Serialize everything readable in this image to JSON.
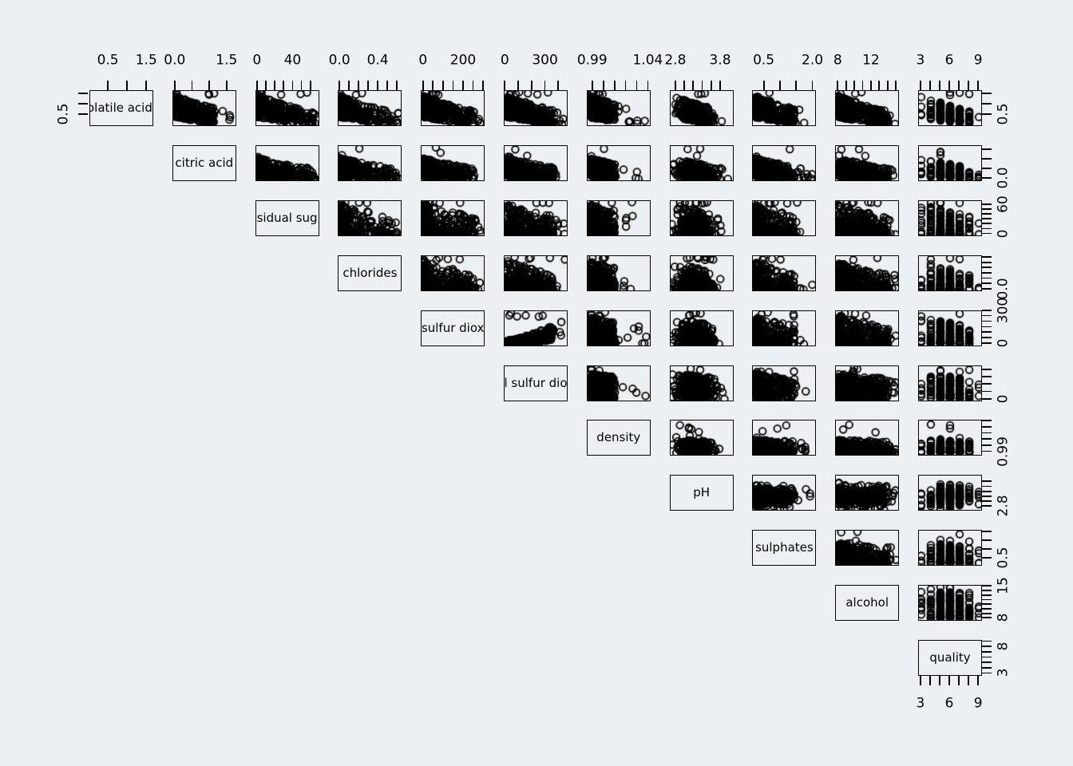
{
  "figure": {
    "background": "#edf0f2",
    "line_color": "#000000",
    "marker": "open-circle",
    "kind": "R pairs scatterplot matrix, upper triangle"
  },
  "chart_data": {
    "type": "scatter",
    "subtype": "scatterplot-matrix-upper-triangle",
    "points_per_cell": 320,
    "marker": {
      "shape": "open-circle",
      "radius": 4.3,
      "stroke_width": 1.8,
      "color": "#000000"
    },
    "pair_overrides": [
      {
        "row": 4,
        "col": 5,
        "wedge": -0.6
      }
    ],
    "variables": [
      {
        "id": "volatile-acidity",
        "label": "olatile acidi",
        "lim": [
          0.02,
          1.64
        ],
        "ticks": [
          0.5,
          1.0,
          1.5
        ],
        "top_labels": [
          {
            "v": 0.5,
            "text": "0.5"
          },
          {
            "v": 1.5,
            "text": "1.5"
          }
        ],
        "right_labels": [
          {
            "v": 0.5,
            "text": "0.5"
          }
        ],
        "left_labels": [
          {
            "v": 0.5,
            "text": "0.5"
          }
        ],
        "dist": {
          "type": "pow",
          "p": 1.7,
          "scale": 0.85,
          "base": 0.03
        },
        "wedge": 0.45
      },
      {
        "id": "citric-acid",
        "label": "citric acid",
        "lim": [
          -0.07,
          1.73
        ],
        "ticks": [
          0.0,
          0.5,
          1.0,
          1.5
        ],
        "top_labels": [
          {
            "v": 0.0,
            "text": "0.0"
          },
          {
            "v": 1.5,
            "text": "1.5"
          }
        ],
        "right_labels": [
          {
            "v": 0.0,
            "text": "0.0"
          }
        ],
        "dist": {
          "type": "pow",
          "p": 1.9,
          "scale": 0.62,
          "base": 0.04
        },
        "wedge": 0.35
      },
      {
        "id": "residual-sugar",
        "label": "sidual sug",
        "lim": [
          -2,
          68
        ],
        "ticks": [
          0,
          10,
          20,
          30,
          40,
          50,
          60
        ],
        "top_labels": [
          {
            "v": 0,
            "text": "0"
          },
          {
            "v": 40,
            "text": "40"
          }
        ],
        "right_labels": [
          {
            "v": 60,
            "text": "60"
          },
          {
            "v": 0,
            "text": "0"
          }
        ],
        "dist": {
          "type": "pow",
          "p": 3.0,
          "scale": 0.9,
          "base": 0.03
        },
        "wedge": 0.2
      },
      {
        "id": "chlorides",
        "label": "chlorides",
        "lim": [
          -0.015,
          0.635
        ],
        "ticks": [
          0.0,
          0.1,
          0.2,
          0.3,
          0.4,
          0.5,
          0.6
        ],
        "top_labels": [
          {
            "v": 0.0,
            "text": "0.0"
          },
          {
            "v": 0.4,
            "text": "0.4"
          }
        ],
        "right_labels": [
          {
            "v": 0.0,
            "text": "0.0"
          }
        ],
        "dist": {
          "type": "pow",
          "p": 3.4,
          "scale": 0.85,
          "base": 0.03
        },
        "wedge": 0.2
      },
      {
        "id": "free-sulfur-dioxide",
        "label": "sulfur diox",
        "lim": [
          -10.5,
          300.5
        ],
        "ticks": [
          0,
          50,
          100,
          150,
          200,
          250,
          300
        ],
        "top_labels": [
          {
            "v": 0,
            "text": "0"
          },
          {
            "v": 200,
            "text": "200"
          }
        ],
        "right_labels": [
          {
            "v": 300,
            "text": "300"
          },
          {
            "v": 0,
            "text": "0"
          }
        ],
        "dist": {
          "type": "pow",
          "p": 2.4,
          "scale": 0.8,
          "base": 0.04
        },
        "wedge": 0.2
      },
      {
        "id": "total-sulfur-dioxide",
        "label": "l sulfur dio",
        "lim": [
          -8,
          458
        ],
        "ticks": [
          0,
          100,
          200,
          300,
          400
        ],
        "top_labels": [
          {
            "v": 0,
            "text": "0"
          },
          {
            "v": 300,
            "text": "300"
          }
        ],
        "right_labels": [
          {
            "v": 0,
            "text": "0"
          }
        ],
        "dist": {
          "type": "pow",
          "p": 1.6,
          "scale": 0.75,
          "base": 0.04
        },
        "wedge": 0.15
      },
      {
        "id": "density",
        "label": "density",
        "lim": [
          0.985,
          1.041
        ],
        "ticks": [
          0.99,
          1.0,
          1.01,
          1.02,
          1.03,
          1.04
        ],
        "top_labels": [
          {
            "v": 0.99,
            "text": "0.99"
          },
          {
            "v": 1.04,
            "text": "1.04"
          }
        ],
        "right_labels": [
          {
            "v": 0.99,
            "text": "0.99"
          }
        ],
        "dist": {
          "type": "pow",
          "p": 2.0,
          "scale": 0.38,
          "base": 0.06
        },
        "wedge": 0.08
      },
      {
        "id": "pH",
        "label": "pH",
        "lim": [
          2.67,
          4.06
        ],
        "ticks": [
          2.8,
          3.0,
          3.2,
          3.4,
          3.6,
          3.8
        ],
        "top_labels": [
          {
            "v": 2.8,
            "text": "2.8"
          },
          {
            "v": 3.8,
            "text": "3.8"
          }
        ],
        "right_labels": [
          {
            "v": 2.8,
            "text": "2.8"
          }
        ],
        "dist": {
          "type": "norm",
          "mu": 0.4,
          "sd": 0.14
        },
        "wedge": 0
      },
      {
        "id": "sulphates",
        "label": "sulphates",
        "lim": [
          0.15,
          2.07
        ],
        "ticks": [
          0.5,
          1.0,
          1.5,
          2.0
        ],
        "top_labels": [
          {
            "v": 0.5,
            "text": "0.5"
          },
          {
            "v": 2.0,
            "text": "2.0"
          }
        ],
        "right_labels": [
          {
            "v": 0.5,
            "text": "0.5"
          }
        ],
        "dist": {
          "type": "pow",
          "p": 2.6,
          "scale": 0.62,
          "base": 0.05
        },
        "wedge": 0.12
      },
      {
        "id": "alcohol",
        "label": "alcohol",
        "lim": [
          7.7,
          15.2
        ],
        "ticks": [
          8,
          9,
          10,
          11,
          12,
          13,
          14,
          15
        ],
        "top_labels": [
          {
            "v": 8,
            "text": "8"
          },
          {
            "v": 12,
            "text": "12"
          }
        ],
        "right_labels": [
          {
            "v": 15,
            "text": "15"
          },
          {
            "v": 8,
            "text": "8"
          }
        ],
        "dist": {
          "type": "pow",
          "p": 1.5,
          "scale": 0.8,
          "base": 0.04
        },
        "wedge": 0.05
      },
      {
        "id": "quality",
        "label": "quality",
        "lim": [
          2.76,
          9.24
        ],
        "ticks": [
          3,
          4,
          5,
          6,
          7,
          8,
          9
        ],
        "top_labels": [
          {
            "v": 3,
            "text": "3"
          },
          {
            "v": 6,
            "text": "6"
          },
          {
            "v": 9,
            "text": "9"
          }
        ],
        "right_labels": [
          {
            "v": 8,
            "text": "8"
          },
          {
            "v": 3,
            "text": "3"
          }
        ],
        "bottom_labels": [
          {
            "v": 3,
            "text": "3"
          },
          {
            "v": 6,
            "text": "6"
          },
          {
            "v": 9,
            "text": "9"
          }
        ],
        "dist": {
          "type": "disc",
          "vals": [
            3,
            4,
            5,
            6,
            7,
            8,
            9
          ],
          "weights": [
            2,
            8,
            30,
            40,
            18,
            5,
            1
          ]
        },
        "wedge": 0
      }
    ]
  }
}
